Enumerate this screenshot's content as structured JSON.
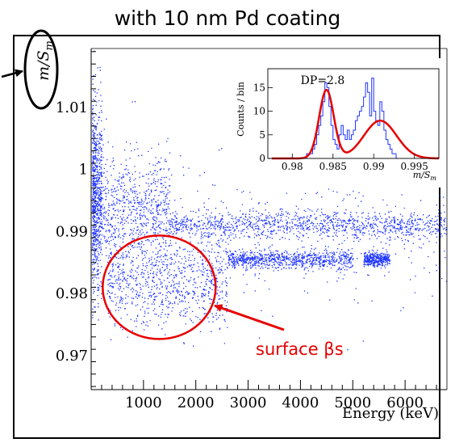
{
  "header": {
    "title": "with 10 nm Pd coating"
  },
  "chart_data": [
    {
      "type": "scatter",
      "title": "",
      "xlabel": "Energy (keV)",
      "ylabel": "m/S_m",
      "ylabel_main": "m/S",
      "ylabel_sub": "m",
      "xlim": [
        0,
        6800
      ],
      "ylim": [
        0.9645,
        1.0195
      ],
      "x_ticks": [
        1000,
        2000,
        3000,
        4000,
        5000,
        6000
      ],
      "x_tick_labels": [
        "1000",
        "2000",
        "3000",
        "4000",
        "5000",
        "6000"
      ],
      "y_ticks": [
        0.97,
        0.98,
        0.99,
        1.0,
        1.01
      ],
      "y_tick_labels": [
        "0.97",
        "0.98",
        "0.99",
        "1",
        "1.01"
      ],
      "point_color": "#1f35ff",
      "bands": [
        {
          "x": [
            0,
            200
          ],
          "y_center": 0.995,
          "y_spread": 0.012,
          "fraction": 0.18
        },
        {
          "x": [
            200,
            1500
          ],
          "y_center": 0.994,
          "y_spread": 0.007,
          "fraction": 0.12
        },
        {
          "x": [
            1500,
            6800
          ],
          "y_center": 0.991,
          "y_spread": 0.0018,
          "fraction": 0.22
        },
        {
          "x": [
            300,
            2600
          ],
          "y_center": 0.982,
          "y_spread": 0.006,
          "fraction": 0.17
        },
        {
          "x": [
            2600,
            5000
          ],
          "y_center": 0.9855,
          "y_spread": 0.0012,
          "fraction": 0.16
        },
        {
          "x": [
            5200,
            5700
          ],
          "y_center": 0.9855,
          "y_spread": 0.0009,
          "fraction": 0.07
        },
        {
          "x": [
            0,
            6800
          ],
          "y_center": 0.99,
          "y_spread": 0.012,
          "fraction": 0.08
        }
      ],
      "annotation": {
        "text": "surface βs",
        "color": "#e60000",
        "ellipse_center": [
          1300,
          0.981
        ],
        "arrow_target": [
          2300,
          0.9783
        ]
      }
    },
    {
      "type": "histogram",
      "title": "DP=2.8",
      "xlabel": "m/S_m",
      "xlabel_main": "m/S",
      "xlabel_sub": "m",
      "ylabel": "Counts / bin",
      "xlim": [
        0.977,
        0.998
      ],
      "ylim": [
        0,
        19
      ],
      "x_ticks": [
        0.98,
        0.985,
        0.99,
        0.995
      ],
      "x_tick_labels": [
        "0.98",
        "0.985",
        "0.99",
        "0.995"
      ],
      "y_ticks": [
        0,
        5,
        10,
        15
      ],
      "y_tick_labels": [
        "0",
        "5",
        "10",
        "15"
      ],
      "bin_edges_start": 0.9815,
      "bin_width": 0.00025,
      "counts": [
        0,
        1,
        1,
        1,
        2,
        3,
        5,
        7,
        9,
        12,
        16,
        15,
        11,
        7,
        4,
        3,
        2,
        5,
        7,
        5,
        4,
        6,
        4,
        5,
        6,
        8,
        9,
        10,
        11,
        13,
        16,
        14,
        9,
        17,
        10,
        8,
        7,
        12,
        10,
        6,
        4,
        3,
        2,
        1,
        1,
        0
      ],
      "fit": {
        "color": "#e60000",
        "gaussians": [
          {
            "amplitude": 14.5,
            "mean": 0.9842,
            "sigma": 0.0009
          },
          {
            "amplitude": 8.0,
            "mean": 0.9908,
            "sigma": 0.002
          }
        ]
      }
    }
  ]
}
